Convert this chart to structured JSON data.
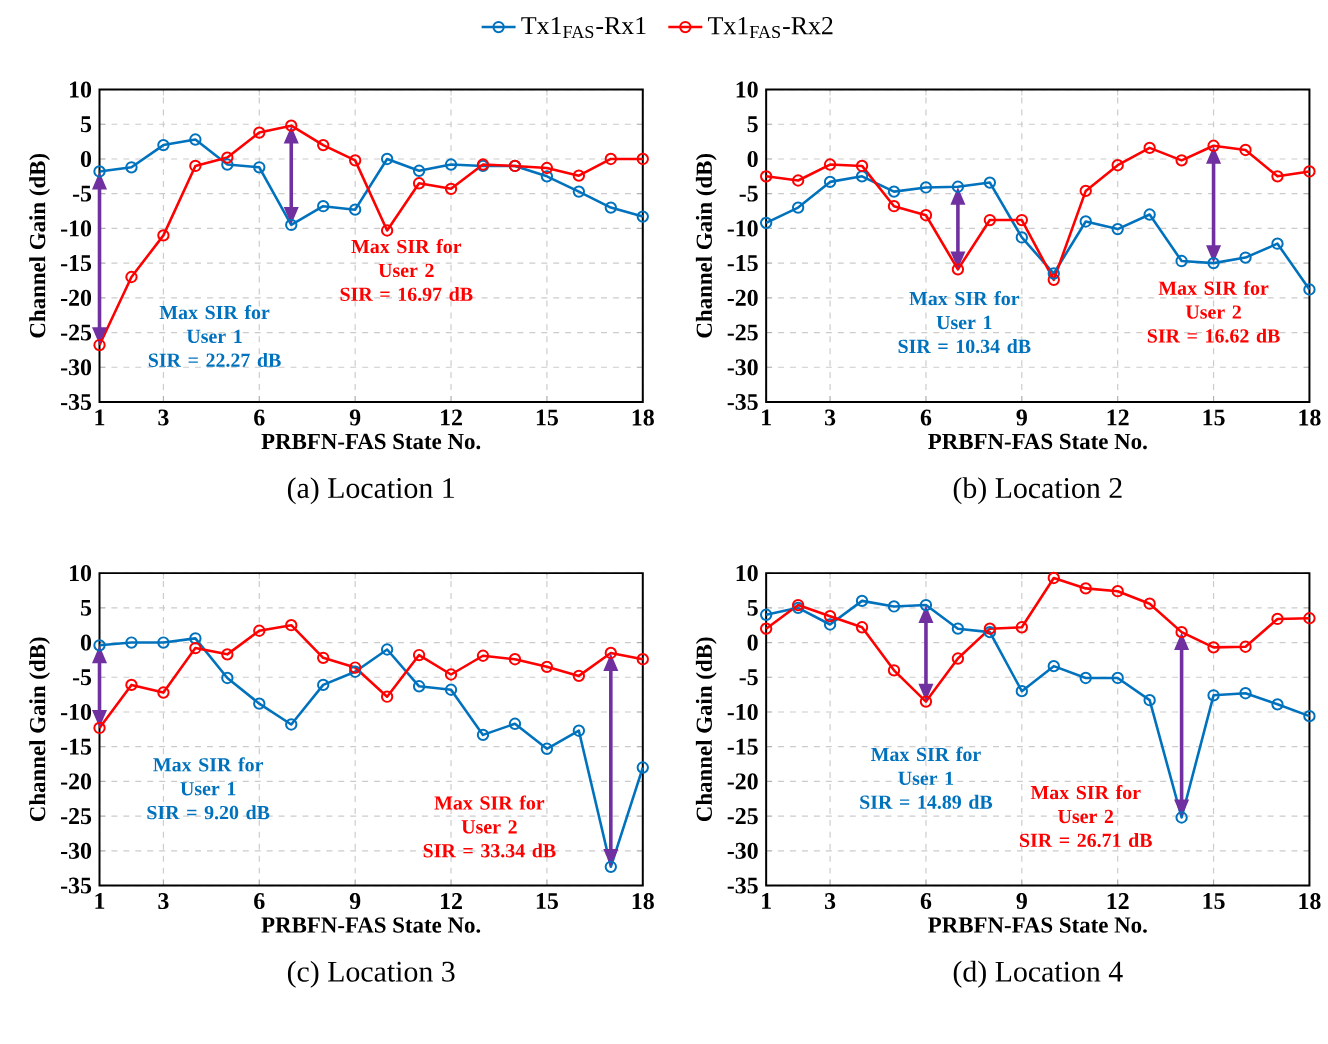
{
  "chart_data": [
    {
      "type": "line",
      "title": "(a) Location 1",
      "xlabel": "PRBFN-FAS State No.",
      "ylabel": "Channel Gain (dB)",
      "x": [
        1,
        2,
        3,
        4,
        5,
        6,
        7,
        8,
        9,
        10,
        11,
        12,
        13,
        14,
        15,
        16,
        17,
        18
      ],
      "xlim": [
        1,
        18
      ],
      "xticks": [
        1,
        3,
        6,
        9,
        12,
        15,
        18
      ],
      "ylim": [
        -35,
        10
      ],
      "yticks": [
        -35,
        -30,
        -25,
        -20,
        -15,
        -10,
        -5,
        0,
        5,
        10
      ],
      "grid": true,
      "marker": "circle",
      "line_style": "solid",
      "legend": "top",
      "series": [
        {
          "name": "Tx1$_{FAS}$-Rx1",
          "color": "#0072bd",
          "values": [
            -1.8,
            -1.2,
            2,
            2.8,
            -0.8,
            -1.2,
            -9.5,
            -6.8,
            -7.3,
            0,
            -1.7,
            -0.8,
            -1,
            -1,
            -2.5,
            -4.7,
            -7,
            -8.3
          ]
        },
        {
          "name": "Tx1$_{FAS}$-Rx2",
          "color": "#ff0000",
          "values": [
            -26.8,
            -17,
            -11,
            -1,
            0.2,
            3.8,
            4.8,
            2,
            -0.2,
            -10.3,
            -3.5,
            -4.3,
            -0.8,
            -1,
            -1.3,
            -2.4,
            0,
            0
          ]
        }
      ],
      "annotations": [
        {
          "text": "Max SIR for User 1 SIR = 22.27 dB",
          "x": 1,
          "y": -26.8
        },
        {
          "text": "Max SIR for User 2 SIR = 16.97 dB",
          "x": 7,
          "y": -9.5
        }
      ]
    },
    {
      "type": "line",
      "title": "(b) Location 2",
      "xlabel": "PRBFN-FAS State No.",
      "ylabel": "Channel Gain (dB)",
      "x": [
        1,
        2,
        3,
        4,
        5,
        6,
        7,
        8,
        9,
        10,
        11,
        12,
        13,
        14,
        15,
        16,
        17,
        18
      ],
      "xlim": [
        1,
        18
      ],
      "xticks": [
        1,
        3,
        6,
        9,
        12,
        15,
        18
      ],
      "ylim": [
        -35,
        10
      ],
      "yticks": [
        -35,
        -30,
        -25,
        -20,
        -15,
        -10,
        -5,
        0,
        5,
        10
      ],
      "grid": true,
      "marker": "circle",
      "line_style": "solid",
      "series": [
        {
          "color": "#0072bd",
          "values": [
            -9.2,
            -7,
            -3.3,
            -2.5,
            -4.7,
            -4.1,
            -4,
            -3.4,
            -11.3,
            -16.5,
            -9,
            -10.1,
            -8,
            -14.7,
            -15,
            -14.2,
            -12.2,
            -18.8
          ]
        },
        {
          "color": "#ff0000",
          "values": [
            -2.5,
            -3.1,
            -0.8,
            -1,
            -6.8,
            -8.1,
            -15.9,
            -8.8,
            -8.8,
            -17.4,
            -4.6,
            -0.9,
            1.6,
            -0.2,
            1.9,
            1.3,
            -2.5,
            -1.8
          ]
        }
      ],
      "annotations": [
        {
          "text": "Max SIR for User 1 SIR = 10.34 dB",
          "x": 7,
          "y": -15.9
        },
        {
          "text": "Max SIR for User 2 SIR = 16.62 dB",
          "x": 15,
          "y": -15
        }
      ]
    },
    {
      "type": "line",
      "title": "(c) Location 3",
      "xlabel": "PRBFN-FAS State No.",
      "ylabel": "Channel Gain (dB)",
      "x": [
        1,
        2,
        3,
        4,
        5,
        6,
        7,
        8,
        9,
        10,
        11,
        12,
        13,
        14,
        15,
        16,
        17,
        18
      ],
      "xlim": [
        1,
        18
      ],
      "xticks": [
        1,
        3,
        6,
        9,
        12,
        15,
        18
      ],
      "ylim": [
        -35,
        10
      ],
      "yticks": [
        -35,
        -30,
        -25,
        -20,
        -15,
        -10,
        -5,
        0,
        5,
        10
      ],
      "grid": true,
      "marker": "circle",
      "line_style": "solid",
      "series": [
        {
          "color": "#0072bd",
          "values": [
            -0.4,
            0,
            0,
            0.6,
            -5.1,
            -8.8,
            -11.8,
            -6.1,
            -4.2,
            -1,
            -6.3,
            -6.8,
            -13.3,
            -11.7,
            -15.3,
            -12.7,
            -32.3,
            -18
          ]
        },
        {
          "color": "#ff0000",
          "values": [
            -12.3,
            -6.1,
            -7.2,
            -0.8,
            -1.7,
            1.7,
            2.5,
            -2.2,
            -3.6,
            -7.8,
            -1.8,
            -4.6,
            -1.9,
            -2.4,
            -3.5,
            -4.8,
            -1.5,
            -2.4
          ]
        }
      ],
      "annotations": [
        {
          "text": "Max SIR for User 1 SIR = 9.20 dB",
          "x": 1,
          "y": -12.3
        },
        {
          "text": "Max SIR for User 2 SIR = 33.34 dB",
          "x": 17,
          "y": -32.3
        }
      ]
    },
    {
      "type": "line",
      "title": "(d) Location 4",
      "xlabel": "PRBFN-FAS State No.",
      "ylabel": "Channel Gain (dB)",
      "x": [
        1,
        2,
        3,
        4,
        5,
        6,
        7,
        8,
        9,
        10,
        11,
        12,
        13,
        14,
        15,
        16,
        17,
        18
      ],
      "xlim": [
        1,
        18
      ],
      "xticks": [
        1,
        3,
        6,
        9,
        12,
        15,
        18
      ],
      "ylim": [
        -35,
        10
      ],
      "yticks": [
        -35,
        -30,
        -25,
        -20,
        -15,
        -10,
        -5,
        0,
        5,
        10
      ],
      "grid": true,
      "marker": "circle",
      "line_style": "solid",
      "series": [
        {
          "color": "#0072bd",
          "values": [
            4,
            5,
            2.6,
            6,
            5.2,
            5.4,
            2,
            1.5,
            -7,
            -3.4,
            -5.1,
            -5.1,
            -8.3,
            -25.2,
            -7.6,
            -7.3,
            -8.9,
            -10.6
          ]
        },
        {
          "color": "#ff0000",
          "values": [
            2,
            5.4,
            3.8,
            2.2,
            -4,
            -8.5,
            -2.3,
            2,
            2.2,
            9.3,
            7.8,
            7.4,
            5.6,
            1.5,
            -0.7,
            -0.6,
            3.4,
            3.5
          ]
        }
      ],
      "annotations": [
        {
          "text": "Max SIR for User 1 SIR = 14.89 dB",
          "x": 6,
          "y": -8.5
        },
        {
          "text": "Max SIR for User 2 SIR = 26.71 dB",
          "x": 14,
          "y": -25.2
        }
      ]
    }
  ]
}
